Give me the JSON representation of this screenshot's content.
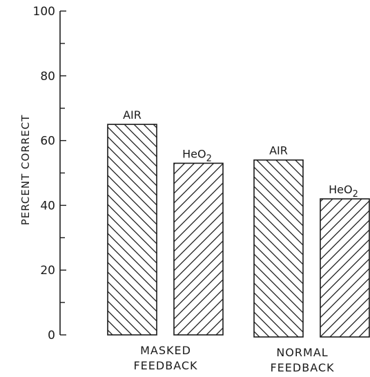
{
  "chart_data": {
    "type": "bar",
    "ylabel": "PERCENT CORRECT",
    "ylim": [
      0,
      100
    ],
    "y_ticks": [
      "0",
      "20",
      "40",
      "60",
      "80",
      "100"
    ],
    "grid": false,
    "groups": [
      {
        "label_lines": [
          "MASKED",
          "FEEDBACK"
        ],
        "bars": [
          {
            "label": "AIR",
            "value": 65
          },
          {
            "label_base": "HeO",
            "label_sub": "2",
            "value": 53
          }
        ]
      },
      {
        "label_lines": [
          "NORMAL",
          "FEEDBACK"
        ],
        "bars": [
          {
            "label": "AIR",
            "value": 54
          },
          {
            "label_base": "HeO",
            "label_sub": "2",
            "value": 42
          }
        ]
      }
    ]
  }
}
